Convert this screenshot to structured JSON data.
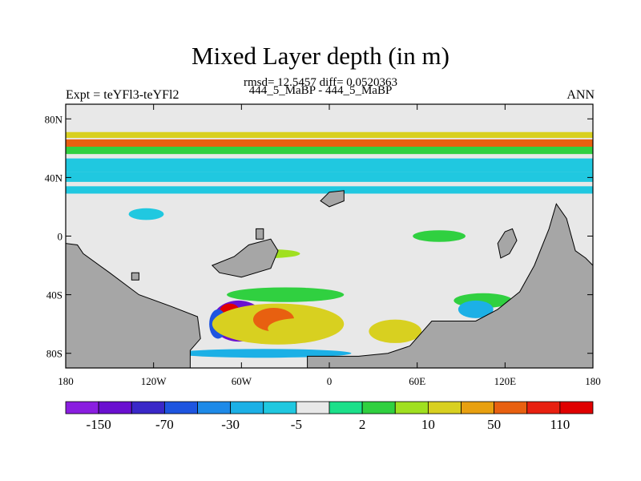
{
  "header": {
    "title": "Mixed Layer depth (in m)",
    "rmsd_line": "rmsd= 12.5457 diff= 0.0520363",
    "center_label": "444_5_MaBP - 444_5_MaBP",
    "left_label": "Expt = teYFl3-teYFl2",
    "right_label": "ANN"
  },
  "colors": {
    "land": "#a6a6a6",
    "near_zero": "#e8e8e8"
  },
  "chart_data": {
    "type": "heatmap",
    "title": "Mixed Layer depth (in m)",
    "x_axis": {
      "range": [
        -180,
        180
      ],
      "ticks": [
        -180,
        -120,
        -60,
        0,
        60,
        120,
        180
      ],
      "tick_labels": [
        "180",
        "120W",
        "60W",
        "0",
        "60E",
        "120E",
        "180"
      ]
    },
    "y_axis": {
      "range": [
        -90,
        90
      ],
      "ticks": [
        -80,
        -40,
        0,
        40,
        80
      ],
      "tick_labels": [
        "80S",
        "40S",
        "0",
        "40N",
        "80N"
      ]
    },
    "colorbar": {
      "colors": [
        "#8a1ee0",
        "#6a10d0",
        "#3a28c8",
        "#1e55e0",
        "#1e8ae8",
        "#1cb0e6",
        "#20c8e0",
        "#e8e8e8",
        "#1ce08a",
        "#30d040",
        "#a0e020",
        "#d8d020",
        "#e8a010",
        "#e86010",
        "#e82010",
        "#e00000"
      ],
      "labels": [
        "-150",
        "-70",
        "-30",
        "-5",
        "2",
        "10",
        "50",
        "110"
      ]
    },
    "bands": [
      {
        "lat_min": 67,
        "lat_max": 71,
        "value": 10
      },
      {
        "lat_min": 61,
        "lat_max": 66,
        "value": 60
      },
      {
        "lat_min": 56,
        "lat_max": 61,
        "value": 4
      },
      {
        "lat_min": 44,
        "lat_max": 53,
        "value": -6
      },
      {
        "lat_min": 37,
        "lat_max": 44,
        "value": -12
      },
      {
        "lat_min": 29,
        "lat_max": 34,
        "value": -6
      }
    ],
    "blobs": [
      {
        "lon": -62,
        "lat": -58,
        "rx": 18,
        "ry": 14,
        "value": -150
      },
      {
        "lon": -68,
        "lat": -52,
        "rx": 7,
        "ry": 6,
        "value": 110
      },
      {
        "lon": -58,
        "lat": -64,
        "rx": 12,
        "ry": 6,
        "value": -160
      },
      {
        "lon": -76,
        "lat": -60,
        "rx": 6,
        "ry": 10,
        "value": -70
      },
      {
        "lon": -35,
        "lat": -60,
        "rx": 45,
        "ry": 14,
        "value": 20
      },
      {
        "lon": -38,
        "lat": -57,
        "rx": 14,
        "ry": 8,
        "value": 55
      },
      {
        "lon": -20,
        "lat": -63,
        "rx": 22,
        "ry": 7,
        "value": 10
      },
      {
        "lon": 45,
        "lat": -65,
        "rx": 18,
        "ry": 8,
        "value": 15
      },
      {
        "lon": -30,
        "lat": -40,
        "rx": 40,
        "ry": 5,
        "value": 4
      },
      {
        "lon": -45,
        "lat": -80,
        "rx": 60,
        "ry": 3,
        "value": -30
      },
      {
        "lon": 105,
        "lat": -44,
        "rx": 20,
        "ry": 5,
        "value": 4
      },
      {
        "lon": 100,
        "lat": -50,
        "rx": 12,
        "ry": 6,
        "value": -20
      },
      {
        "lon": -125,
        "lat": 15,
        "rx": 12,
        "ry": 4,
        "value": -6
      },
      {
        "lon": -60,
        "lat": 18,
        "rx": 20,
        "ry": 5,
        "value": -5
      },
      {
        "lon": 40,
        "lat": 22,
        "rx": 30,
        "ry": 4,
        "value": -5
      },
      {
        "lon": 75,
        "lat": 0,
        "rx": 18,
        "ry": 4,
        "value": 4
      },
      {
        "lon": -40,
        "lat": -12,
        "rx": 20,
        "ry": 3,
        "value": 5
      }
    ],
    "land": [
      [
        [
          -180,
          -90
        ],
        [
          -180,
          -5
        ],
        [
          -172,
          -6
        ],
        [
          -168,
          -12
        ],
        [
          -150,
          -25
        ],
        [
          -130,
          -40
        ],
        [
          -108,
          -48
        ],
        [
          -90,
          -55
        ],
        [
          -88,
          -70
        ],
        [
          -95,
          -78
        ],
        [
          -95,
          -90
        ]
      ],
      [
        [
          -15,
          -90
        ],
        [
          -15,
          -82
        ],
        [
          20,
          -82
        ],
        [
          40,
          -80
        ],
        [
          55,
          -75
        ],
        [
          70,
          -58
        ],
        [
          100,
          -58
        ],
        [
          115,
          -50
        ],
        [
          130,
          -38
        ],
        [
          140,
          -20
        ],
        [
          150,
          5
        ],
        [
          155,
          22
        ],
        [
          162,
          12
        ],
        [
          168,
          -10
        ],
        [
          175,
          -15
        ],
        [
          180,
          -20
        ],
        [
          180,
          -90
        ]
      ],
      [
        [
          -65,
          -14
        ],
        [
          -55,
          -6
        ],
        [
          -40,
          -2
        ],
        [
          -35,
          -10
        ],
        [
          -40,
          -22
        ],
        [
          -60,
          -28
        ],
        [
          -75,
          -25
        ],
        [
          -80,
          -20
        ]
      ],
      [
        [
          -6,
          24
        ],
        [
          0,
          30
        ],
        [
          10,
          31
        ],
        [
          10,
          24
        ],
        [
          0,
          20
        ]
      ],
      [
        [
          -50,
          5
        ],
        [
          -45,
          5
        ],
        [
          -45,
          -2
        ],
        [
          -50,
          -2
        ]
      ],
      [
        [
          -135,
          -25
        ],
        [
          -130,
          -25
        ],
        [
          -130,
          -30
        ],
        [
          -135,
          -30
        ]
      ],
      [
        [
          115,
          -5
        ],
        [
          120,
          3
        ],
        [
          125,
          5
        ],
        [
          128,
          -3
        ],
        [
          123,
          -12
        ],
        [
          117,
          -15
        ]
      ]
    ]
  },
  "color_thresholds": [
    -150,
    -110,
    -70,
    -50,
    -30,
    -15,
    -5,
    -2,
    2,
    5,
    10,
    30,
    50,
    70,
    110
  ]
}
